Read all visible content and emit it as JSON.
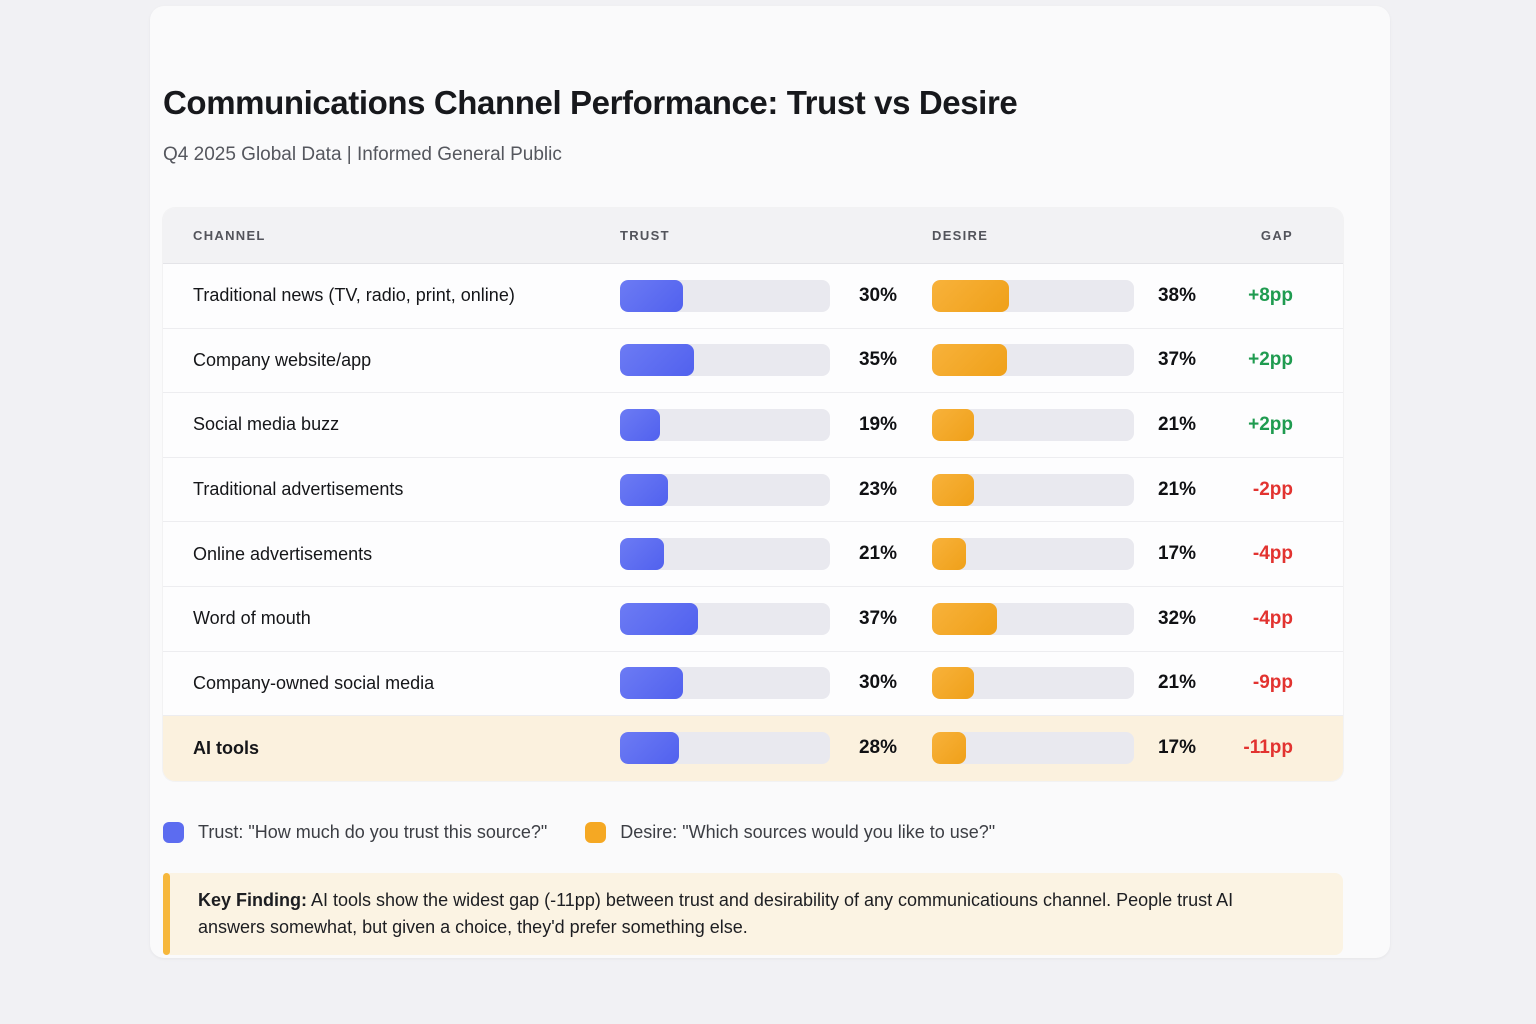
{
  "page": {
    "title": "Communications Channel Performance: Trust vs Desire",
    "subtitle": "Q4 2025 Global Data | Informed General Public"
  },
  "table": {
    "columns": [
      "CHANNEL",
      "TRUST",
      "DESIRE",
      "GAP"
    ],
    "rows": [
      {
        "channel": "Traditional news (TV, radio, print, online)",
        "trust": 30,
        "trust_label": "30%",
        "desire": 38,
        "desire_label": "38%",
        "gap": "+8pp",
        "gap_positive": true,
        "highlight": false
      },
      {
        "channel": "Company website/app",
        "trust": 35,
        "trust_label": "35%",
        "desire": 37,
        "desire_label": "37%",
        "gap": "+2pp",
        "gap_positive": true,
        "highlight": false
      },
      {
        "channel": "Social media buzz",
        "trust": 19,
        "trust_label": "19%",
        "desire": 21,
        "desire_label": "21%",
        "gap": "+2pp",
        "gap_positive": true,
        "highlight": false
      },
      {
        "channel": "Traditional advertisements",
        "trust": 23,
        "trust_label": "23%",
        "desire": 21,
        "desire_label": "21%",
        "gap": "-2pp",
        "gap_positive": false,
        "highlight": false
      },
      {
        "channel": "Online advertisements",
        "trust": 21,
        "trust_label": "21%",
        "desire": 17,
        "desire_label": "17%",
        "gap": "-4pp",
        "gap_positive": false,
        "highlight": false
      },
      {
        "channel": "Word of mouth",
        "trust": 37,
        "trust_label": "37%",
        "desire": 32,
        "desire_label": "32%",
        "gap": "-4pp",
        "gap_positive": false,
        "highlight": false
      },
      {
        "channel": "Company-owned social media",
        "trust": 30,
        "trust_label": "30%",
        "desire": 21,
        "desire_label": "21%",
        "gap": "-9pp",
        "gap_positive": false,
        "highlight": false
      },
      {
        "channel": "AI tools",
        "trust": 28,
        "trust_label": "28%",
        "desire": 17,
        "desire_label": "17%",
        "gap": "-11pp",
        "gap_positive": false,
        "highlight": true
      }
    ]
  },
  "legend": {
    "trust_label": "Trust: \"How much do you trust this source?\"",
    "desire_label": "Desire: \"Which sources would you like to use?\""
  },
  "key_finding": {
    "label": "Key Finding:",
    "text": " AI tools show the widest gap (-11pp) between trust and desirability of any communicatiouns  channel. People trust AI answers somewhat, but given a choice, they'd prefer something else."
  },
  "colors": {
    "trust_bar": "#5c6cf0",
    "desire_bar": "#f5a823",
    "bar_track": "#e9e9ef",
    "gap_positive": "#1f9b50",
    "gap_negative": "#e23330",
    "highlight_row_bg": "#fbf1de",
    "key_finding_bg": "#fbf3e3",
    "key_finding_accent": "#f6b73c"
  },
  "chart_data": {
    "type": "bar",
    "subtype": "table-with-inline-bars",
    "title": "Communications Channel Performance: Trust vs Desire",
    "subtitle": "Q4 2025 Global Data | Informed General Public",
    "categories": [
      "Traditional news (TV, radio, print, online)",
      "Company website/app",
      "Social media buzz",
      "Traditional advertisements",
      "Online advertisements",
      "Word of mouth",
      "Company-owned social media",
      "AI tools"
    ],
    "series": [
      {
        "name": "Trust",
        "values": [
          30,
          35,
          19,
          23,
          21,
          37,
          30,
          28
        ]
      },
      {
        "name": "Desire",
        "values": [
          38,
          37,
          21,
          21,
          17,
          32,
          21,
          17
        ]
      }
    ],
    "gap_labels": [
      "+8pp",
      "+2pp",
      "+2pp",
      "-2pp",
      "-4pp",
      "-4pp",
      "-9pp",
      "-11pp"
    ],
    "bar_scale": [
      0,
      100
    ],
    "legend_position": "bottom",
    "highlighted_category": "AI tools"
  }
}
